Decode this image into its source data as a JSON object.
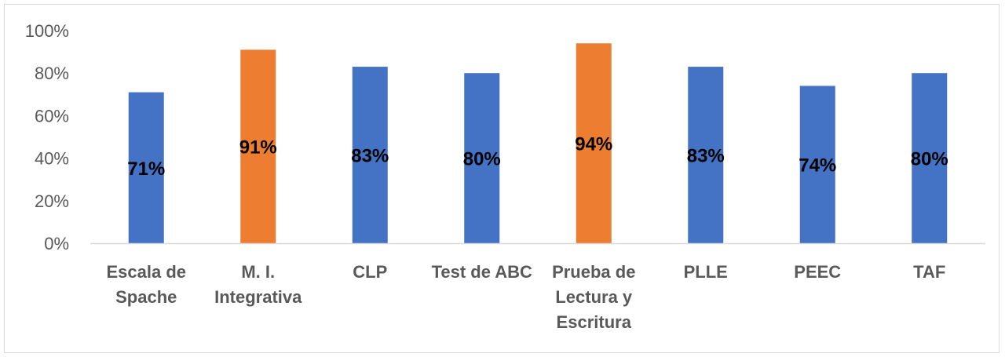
{
  "chart_data": {
    "type": "bar",
    "categories": [
      [
        "Escala de",
        "Spache"
      ],
      [
        "M. I.",
        "Integrativa"
      ],
      [
        "CLP"
      ],
      [
        "Test de ABC"
      ],
      [
        "Prueba de",
        "Lectura y",
        "Escritura"
      ],
      [
        "PLLE"
      ],
      [
        "PEEC"
      ],
      [
        "TAF"
      ]
    ],
    "values": [
      71,
      91,
      83,
      80,
      94,
      83,
      74,
      80
    ],
    "data_labels": [
      "71%",
      "91%",
      "83%",
      "80%",
      "94%",
      "83%",
      "74%",
      "80%"
    ],
    "highlighted": [
      false,
      true,
      false,
      false,
      true,
      false,
      false,
      false
    ],
    "y_ticks": [
      "0%",
      "20%",
      "40%",
      "60%",
      "80%",
      "100%"
    ],
    "ylim": [
      0,
      100
    ],
    "title": "",
    "xlabel": "",
    "ylabel": "",
    "grid": false,
    "legend": "none",
    "colors": {
      "bar": "#4472c4",
      "highlight": "#ed7d31",
      "axis": "#d9d9d9",
      "text": "#595959"
    }
  }
}
